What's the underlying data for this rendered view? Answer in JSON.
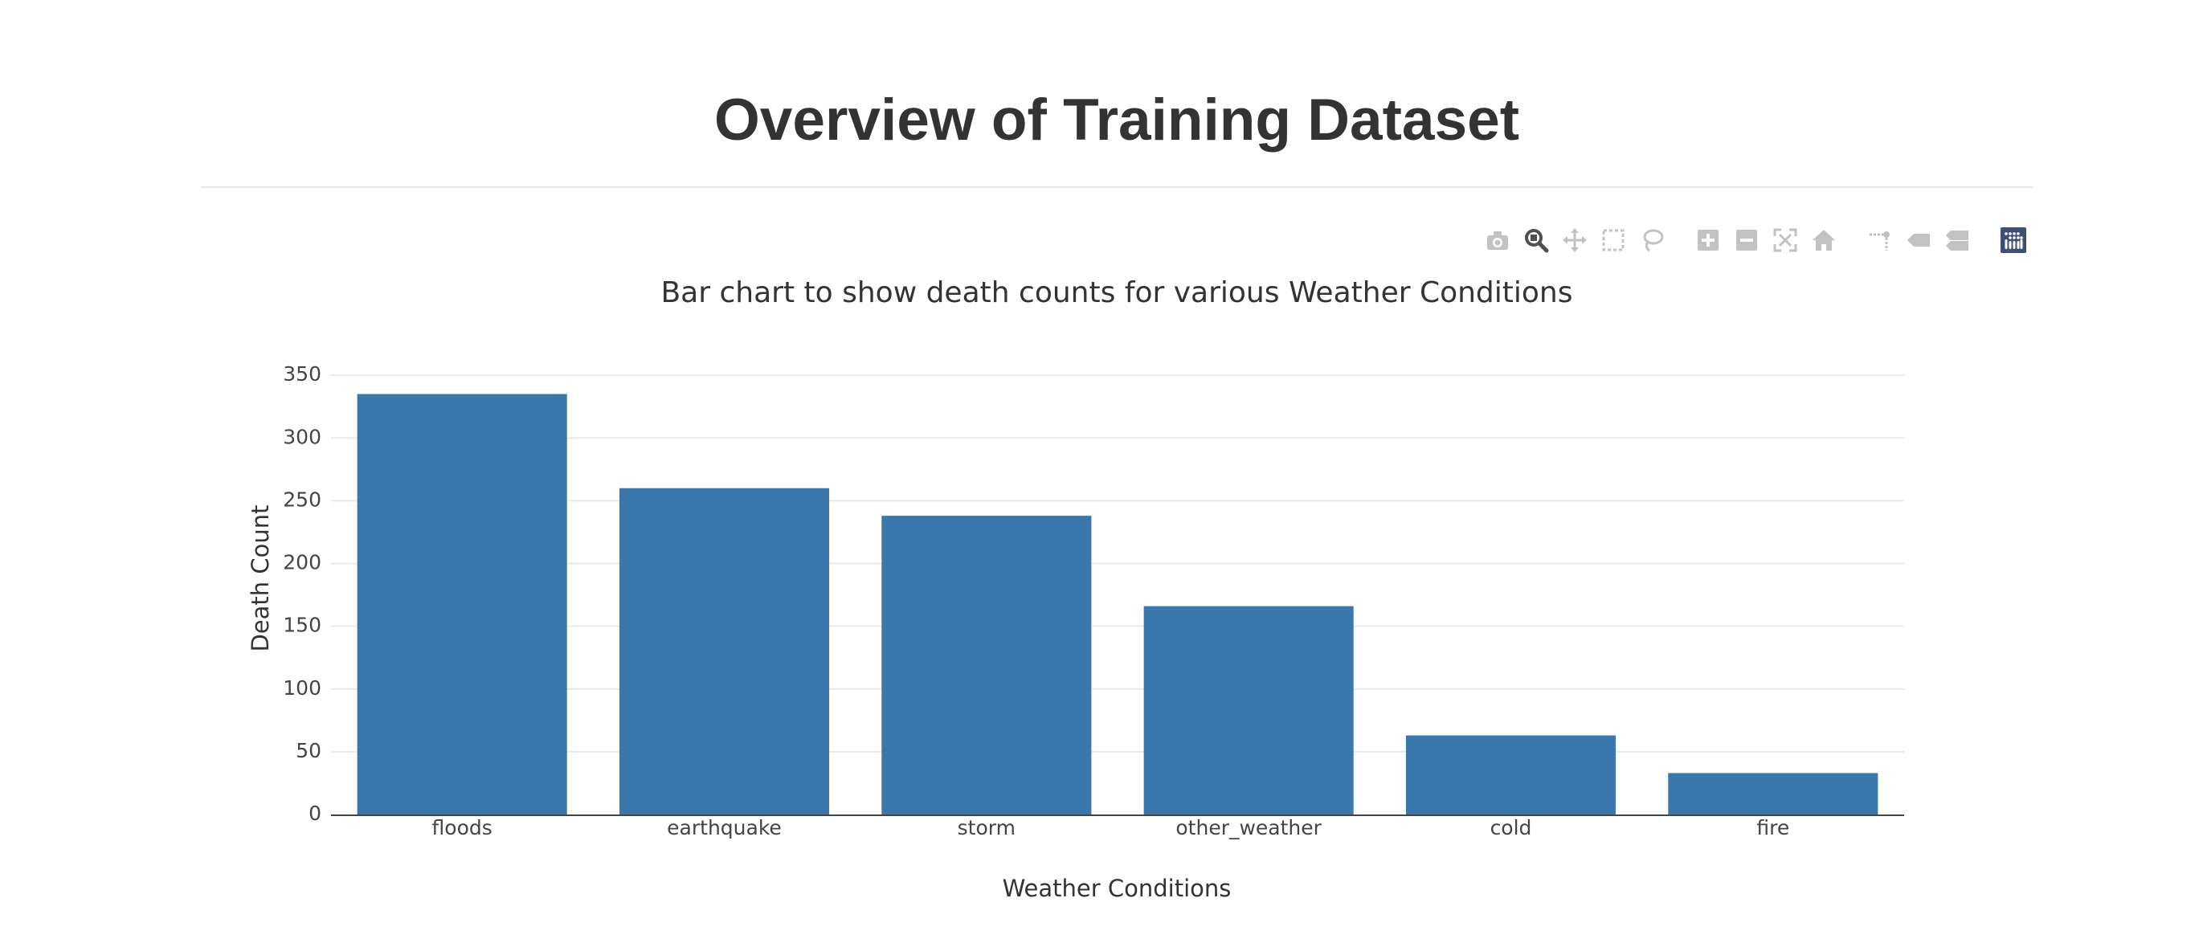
{
  "header": {
    "title": "Overview of Training Dataset"
  },
  "modebar": {
    "groups": [
      [
        {
          "name": "camera-icon",
          "active": false
        },
        {
          "name": "zoom-icon",
          "active": true
        },
        {
          "name": "pan-icon",
          "active": false
        },
        {
          "name": "box-select-icon",
          "active": false
        },
        {
          "name": "lasso-select-icon",
          "active": false
        }
      ],
      [
        {
          "name": "zoom-in-icon",
          "active": false
        },
        {
          "name": "zoom-out-icon",
          "active": false
        },
        {
          "name": "autoscale-icon",
          "active": false
        },
        {
          "name": "reset-axes-icon",
          "active": false
        }
      ],
      [
        {
          "name": "spike-lines-icon",
          "active": false
        },
        {
          "name": "hover-closest-icon",
          "active": false
        },
        {
          "name": "hover-compare-icon",
          "active": false
        }
      ],
      [
        {
          "name": "plotly-logo-icon",
          "active": false
        }
      ]
    ],
    "colors": {
      "inactive": "#c2c2c2",
      "active": "#505050",
      "logo": "#3f4f75"
    }
  },
  "chart_data": {
    "type": "bar",
    "title": "Bar chart to show death counts for various Weather Conditions",
    "xlabel": "Weather Conditions",
    "ylabel": "Death Count",
    "categories": [
      "floods",
      "earthquake",
      "storm",
      "other_weather",
      "cold",
      "fire"
    ],
    "values": [
      335,
      260,
      238,
      166,
      63,
      33
    ],
    "ylim": [
      0,
      352
    ],
    "yticks": [
      0,
      50,
      100,
      150,
      200,
      250,
      300,
      350
    ],
    "grid": true,
    "bar_color": "#3a77ad",
    "gridline_color": "#e9e9e9"
  }
}
